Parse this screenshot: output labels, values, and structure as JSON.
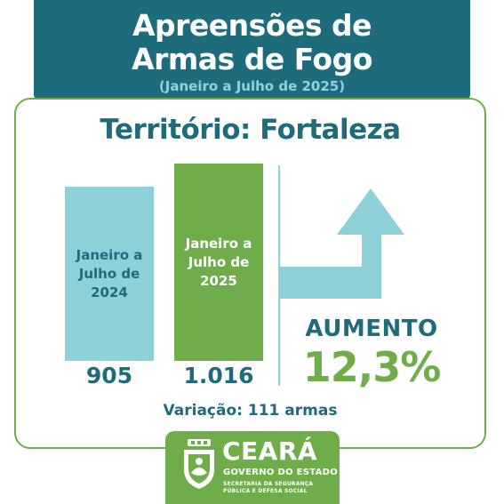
{
  "header": {
    "title_line1": "Apreensões de",
    "title_line2": "Armas de Fogo",
    "subtitle": "(Janeiro a Julho de 2025)"
  },
  "territory": "Território: Fortaleza",
  "chart_data": {
    "type": "bar",
    "categories": [
      "Janeiro a Julho de 2024",
      "Janeiro a Julho de 2025"
    ],
    "category_lines": [
      [
        "Janeiro a",
        "Julho de",
        "2024"
      ],
      [
        "Janeiro a",
        "Julho de",
        "2025"
      ]
    ],
    "values": [
      905,
      1016
    ],
    "value_labels": [
      "905",
      "1.016"
    ],
    "title": "Território: Fortaleza",
    "colors": [
      "#8dd0d8",
      "#6fad4b"
    ]
  },
  "result": {
    "label": "AUMENTO",
    "percent": "12,3%",
    "variation": "Variação: 111 armas",
    "arrow_icon": "arrow-up-icon"
  },
  "logo": {
    "name": "CEARÁ",
    "government": "GOVERNO DO ESTADO",
    "secretariat_line1": "SECRETARIA DA SEGURANÇA",
    "secretariat_line2": "PÚBLICA E DEFESA SOCIAL",
    "emblem_icon": "coat-of-arms-icon"
  },
  "colors": {
    "primary": "#1e6b7b",
    "accent_green": "#6fad4b",
    "light_blue": "#8dd0d8"
  }
}
